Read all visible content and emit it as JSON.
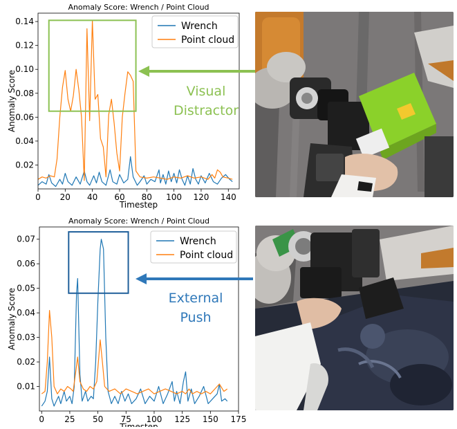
{
  "chart_data": [
    {
      "type": "line",
      "title": "Anomaly Score: Wrench / Point Cloud",
      "xlabel": "Timestep",
      "ylabel": "Anomaly Score",
      "xlim": [
        0,
        148
      ],
      "ylim": [
        0,
        0.147
      ],
      "xticks": [
        0,
        20,
        40,
        60,
        80,
        100,
        120,
        140
      ],
      "yticks": [
        0.02,
        0.04,
        0.06,
        0.08,
        0.1,
        0.12,
        0.14
      ],
      "ytick_labels": [
        "0.02",
        "0.04",
        "0.06",
        "0.08",
        "0.10",
        "0.12",
        "0.14"
      ],
      "legend_position": "top-right",
      "highlight_box": {
        "x0": 8,
        "x1": 72,
        "y0": 0.065,
        "y1": 0.141,
        "color": "#8cc152"
      },
      "series": [
        {
          "name": "Wrench",
          "color": "#1f77b4",
          "points": [
            [
              0,
              0.003
            ],
            [
              3,
              0.006
            ],
            [
              6,
              0.004
            ],
            [
              8,
              0.012
            ],
            [
              10,
              0.005
            ],
            [
              13,
              0.002
            ],
            [
              16,
              0.008
            ],
            [
              18,
              0.004
            ],
            [
              20,
              0.013
            ],
            [
              22,
              0.006
            ],
            [
              25,
              0.003
            ],
            [
              28,
              0.01
            ],
            [
              31,
              0.004
            ],
            [
              34,
              0.015
            ],
            [
              36,
              0.006
            ],
            [
              38,
              0.003
            ],
            [
              41,
              0.011
            ],
            [
              43,
              0.005
            ],
            [
              45,
              0.014
            ],
            [
              47,
              0.006
            ],
            [
              50,
              0.003
            ],
            [
              53,
              0.016
            ],
            [
              55,
              0.006
            ],
            [
              58,
              0.004
            ],
            [
              60,
              0.012
            ],
            [
              63,
              0.005
            ],
            [
              66,
              0.008
            ],
            [
              68,
              0.027
            ],
            [
              70,
              0.01
            ],
            [
              73,
              0.003
            ],
            [
              75,
              0.006
            ],
            [
              78,
              0.011
            ],
            [
              80,
              0.004
            ],
            [
              83,
              0.008
            ],
            [
              86,
              0.006
            ],
            [
              89,
              0.016
            ],
            [
              90,
              0.005
            ],
            [
              92,
              0.012
            ],
            [
              94,
              0.004
            ],
            [
              96,
              0.015
            ],
            [
              98,
              0.006
            ],
            [
              100,
              0.013
            ],
            [
              102,
              0.005
            ],
            [
              104,
              0.016
            ],
            [
              106,
              0.008
            ],
            [
              108,
              0.003
            ],
            [
              110,
              0.011
            ],
            [
              112,
              0.004
            ],
            [
              114,
              0.017
            ],
            [
              116,
              0.008
            ],
            [
              118,
              0.004
            ],
            [
              120,
              0.011
            ],
            [
              123,
              0.005
            ],
            [
              126,
              0.013
            ],
            [
              129,
              0.006
            ],
            [
              132,
              0.004
            ],
            [
              135,
              0.009
            ],
            [
              138,
              0.012
            ],
            [
              141,
              0.008
            ],
            [
              143,
              0.006
            ]
          ]
        },
        {
          "name": "Point cloud",
          "color": "#ff7f0e",
          "points": [
            [
              0,
              0.008
            ],
            [
              3,
              0.01
            ],
            [
              6,
              0.009
            ],
            [
              9,
              0.011
            ],
            [
              12,
              0.01
            ],
            [
              14,
              0.025
            ],
            [
              16,
              0.06
            ],
            [
              18,
              0.085
            ],
            [
              20,
              0.099
            ],
            [
              22,
              0.075
            ],
            [
              24,
              0.065
            ],
            [
              26,
              0.078
            ],
            [
              28,
              0.1
            ],
            [
              30,
              0.083
            ],
            [
              32,
              0.06
            ],
            [
              34,
              0.007
            ],
            [
              36,
              0.134
            ],
            [
              38,
              0.057
            ],
            [
              40,
              0.141
            ],
            [
              42,
              0.075
            ],
            [
              44,
              0.079
            ],
            [
              46,
              0.042
            ],
            [
              48,
              0.035
            ],
            [
              50,
              0.01
            ],
            [
              52,
              0.062
            ],
            [
              54,
              0.075
            ],
            [
              56,
              0.055
            ],
            [
              58,
              0.03
            ],
            [
              60,
              0.015
            ],
            [
              62,
              0.06
            ],
            [
              64,
              0.08
            ],
            [
              66,
              0.098
            ],
            [
              68,
              0.095
            ],
            [
              70,
              0.09
            ],
            [
              72,
              0.015
            ],
            [
              75,
              0.01
            ],
            [
              80,
              0.009
            ],
            [
              85,
              0.01
            ],
            [
              90,
              0.009
            ],
            [
              95,
              0.008
            ],
            [
              100,
              0.01
            ],
            [
              105,
              0.009
            ],
            [
              110,
              0.011
            ],
            [
              115,
              0.009
            ],
            [
              120,
              0.01
            ],
            [
              125,
              0.008
            ],
            [
              128,
              0.012
            ],
            [
              130,
              0.009
            ],
            [
              132,
              0.016
            ],
            [
              134,
              0.014
            ],
            [
              136,
              0.01
            ],
            [
              140,
              0.009
            ],
            [
              143,
              0.008
            ]
          ]
        }
      ]
    },
    {
      "type": "line",
      "title": "Anomaly Score: Wrench / Point Cloud",
      "xlabel": "Timestep",
      "ylabel": "Anomaly Score",
      "xlim": [
        -2,
        175
      ],
      "ylim": [
        0,
        0.075
      ],
      "xticks": [
        0,
        25,
        50,
        75,
        100,
        125,
        150,
        175
      ],
      "yticks": [
        0.01,
        0.02,
        0.03,
        0.04,
        0.05,
        0.06,
        0.07
      ],
      "ytick_labels": [
        "0.01",
        "0.02",
        "0.03",
        "0.04",
        "0.05",
        "0.06",
        "0.07"
      ],
      "legend_position": "top-right",
      "highlight_box": {
        "x0": 24,
        "x1": 77,
        "y0": 0.048,
        "y1": 0.073,
        "color": "#1f5f9a"
      },
      "series": [
        {
          "name": "Wrench",
          "color": "#1f77b4",
          "points": [
            [
              0,
              0.002
            ],
            [
              3,
              0.004
            ],
            [
              5,
              0.008
            ],
            [
              7,
              0.022
            ],
            [
              9,
              0.005
            ],
            [
              11,
              0.002
            ],
            [
              13,
              0.004
            ],
            [
              15,
              0.006
            ],
            [
              17,
              0.003
            ],
            [
              20,
              0.008
            ],
            [
              22,
              0.004
            ],
            [
              25,
              0.006
            ],
            [
              27,
              0.003
            ],
            [
              29,
              0.01
            ],
            [
              31,
              0.048
            ],
            [
              32,
              0.054
            ],
            [
              34,
              0.015
            ],
            [
              36,
              0.004
            ],
            [
              39,
              0.008
            ],
            [
              41,
              0.004
            ],
            [
              44,
              0.006
            ],
            [
              46,
              0.005
            ],
            [
              48,
              0.02
            ],
            [
              50,
              0.045
            ],
            [
              52,
              0.066
            ],
            [
              53,
              0.07
            ],
            [
              55,
              0.066
            ],
            [
              57,
              0.03
            ],
            [
              59,
              0.008
            ],
            [
              62,
              0.003
            ],
            [
              65,
              0.006
            ],
            [
              68,
              0.003
            ],
            [
              71,
              0.008
            ],
            [
              74,
              0.004
            ],
            [
              77,
              0.007
            ],
            [
              80,
              0.003
            ],
            [
              84,
              0.005
            ],
            [
              88,
              0.009
            ],
            [
              92,
              0.003
            ],
            [
              96,
              0.006
            ],
            [
              100,
              0.004
            ],
            [
              104,
              0.01
            ],
            [
              108,
              0.003
            ],
            [
              112,
              0.007
            ],
            [
              116,
              0.012
            ],
            [
              118,
              0.004
            ],
            [
              120,
              0.008
            ],
            [
              123,
              0.003
            ],
            [
              126,
              0.012
            ],
            [
              128,
              0.016
            ],
            [
              130,
              0.004
            ],
            [
              133,
              0.009
            ],
            [
              136,
              0.003
            ],
            [
              140,
              0.006
            ],
            [
              144,
              0.01
            ],
            [
              148,
              0.003
            ],
            [
              152,
              0.005
            ],
            [
              156,
              0.007
            ],
            [
              158,
              0.011
            ],
            [
              160,
              0.004
            ],
            [
              163,
              0.005
            ],
            [
              165,
              0.004
            ]
          ]
        },
        {
          "name": "Point cloud",
          "color": "#ff7f0e",
          "points": [
            [
              0,
              0.007
            ],
            [
              3,
              0.008
            ],
            [
              5,
              0.02
            ],
            [
              7,
              0.041
            ],
            [
              9,
              0.03
            ],
            [
              11,
              0.01
            ],
            [
              14,
              0.007
            ],
            [
              17,
              0.009
            ],
            [
              20,
              0.008
            ],
            [
              23,
              0.01
            ],
            [
              26,
              0.009
            ],
            [
              28,
              0.008
            ],
            [
              30,
              0.015
            ],
            [
              32,
              0.022
            ],
            [
              34,
              0.012
            ],
            [
              37,
              0.009
            ],
            [
              40,
              0.008
            ],
            [
              43,
              0.01
            ],
            [
              46,
              0.009
            ],
            [
              49,
              0.012
            ],
            [
              52,
              0.029
            ],
            [
              54,
              0.02
            ],
            [
              56,
              0.01
            ],
            [
              60,
              0.008
            ],
            [
              65,
              0.009
            ],
            [
              70,
              0.007
            ],
            [
              75,
              0.009
            ],
            [
              80,
              0.008
            ],
            [
              85,
              0.007
            ],
            [
              90,
              0.008
            ],
            [
              95,
              0.009
            ],
            [
              100,
              0.007
            ],
            [
              105,
              0.008
            ],
            [
              110,
              0.009
            ],
            [
              115,
              0.008
            ],
            [
              120,
              0.007
            ],
            [
              125,
              0.008
            ],
            [
              128,
              0.007
            ],
            [
              131,
              0.009
            ],
            [
              134,
              0.007
            ],
            [
              138,
              0.008
            ],
            [
              142,
              0.007
            ],
            [
              146,
              0.008
            ],
            [
              150,
              0.007
            ],
            [
              154,
              0.009
            ],
            [
              158,
              0.011
            ],
            [
              162,
              0.008
            ],
            [
              165,
              0.009
            ]
          ]
        }
      ]
    }
  ],
  "annotations": {
    "top": [
      "Visual",
      "Distractor"
    ],
    "bottom": [
      "External",
      "Push"
    ]
  },
  "colors": {
    "visual_distractor": "#8cc152",
    "external_push": "#2f78b9"
  }
}
